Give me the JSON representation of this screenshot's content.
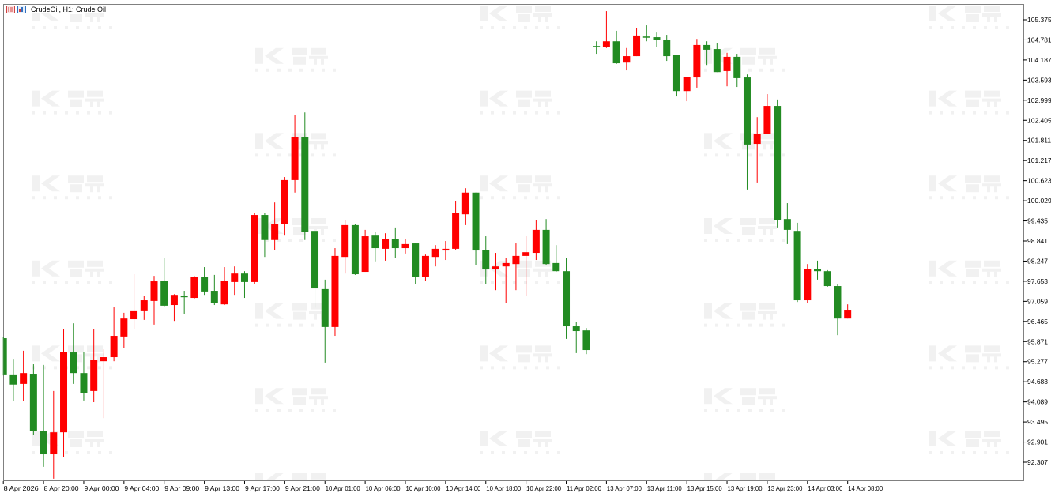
{
  "header": {
    "title": "CrudeOil, H1:  Crude Oil",
    "icons": [
      "chart-window-icon",
      "symbol-properties-icon"
    ]
  },
  "watermark": {
    "text": "智昇",
    "sub": "ZHISHENG"
  },
  "colors": {
    "bullish": "#ff0000",
    "bearish": "#228b22",
    "background": "#ffffff",
    "frame": "#808080",
    "watermark": "#e6e6e6"
  },
  "chart_data": {
    "type": "candlestick",
    "symbol": "CrudeOil",
    "timeframe": "H1",
    "ylim": [
      91.7,
      105.9
    ],
    "grid": false,
    "y_ticks": [
      "105.375",
      "104.781",
      "104.187",
      "103.593",
      "102.999",
      "102.405",
      "101.811",
      "101.217",
      "100.623",
      "100.029",
      "99.435",
      "98.841",
      "98.247",
      "97.653",
      "97.059",
      "96.465",
      "95.871",
      "95.277",
      "94.683",
      "94.089",
      "93.495",
      "92.901",
      "92.307"
    ],
    "x_ticks": [
      "8 Apr 2026",
      "8 Apr 20:00",
      "9 Apr 00:00",
      "9 Apr 04:00",
      "9 Apr 09:00",
      "9 Apr 13:00",
      "9 Apr 17:00",
      "9 Apr 21:00",
      "10 Apr 01:00",
      "10 Apr 06:00",
      "10 Apr 10:00",
      "10 Apr 14:00",
      "10 Apr 18:00",
      "10 Apr 22:00",
      "11 Apr 02:00",
      "13 Apr 07:00",
      "13 Apr 11:00",
      "13 Apr 15:00",
      "13 Apr 19:00",
      "13 Apr 23:00",
      "14 Apr 03:00",
      "14 Apr 08:00"
    ],
    "x_tick_every_bars": 4,
    "ohlc_columns": [
      "open",
      "high",
      "low",
      "close"
    ],
    "ohlc": [
      [
        95.97,
        96.0,
        94.87,
        94.9
      ],
      [
        94.9,
        95.36,
        94.11,
        94.6
      ],
      [
        94.62,
        95.6,
        94.11,
        94.94
      ],
      [
        94.92,
        95.2,
        93.12,
        93.24
      ],
      [
        93.22,
        95.18,
        92.17,
        92.54
      ],
      [
        92.54,
        94.41,
        91.82,
        93.19
      ],
      [
        93.19,
        96.25,
        92.45,
        95.57
      ],
      [
        95.55,
        96.41,
        94.62,
        94.94
      ],
      [
        94.94,
        95.55,
        94.13,
        94.36
      ],
      [
        94.41,
        96.25,
        94.08,
        95.32
      ],
      [
        95.29,
        95.64,
        93.61,
        95.41
      ],
      [
        95.41,
        96.88,
        95.29,
        96.04
      ],
      [
        96.02,
        96.72,
        95.69,
        96.55
      ],
      [
        96.53,
        97.86,
        96.25,
        96.79
      ],
      [
        96.79,
        97.23,
        96.51,
        97.09
      ],
      [
        97.07,
        97.81,
        96.37,
        97.65
      ],
      [
        97.67,
        98.35,
        96.88,
        96.93
      ],
      [
        96.95,
        97.27,
        96.48,
        97.25
      ],
      [
        97.23,
        97.37,
        96.69,
        97.18
      ],
      [
        97.16,
        97.81,
        97.12,
        97.79
      ],
      [
        97.77,
        98.07,
        97.25,
        97.35
      ],
      [
        97.37,
        97.84,
        96.95,
        97.02
      ],
      [
        96.97,
        98.07,
        96.95,
        97.67
      ],
      [
        97.63,
        98.09,
        97.25,
        97.88
      ],
      [
        97.88,
        97.95,
        97.16,
        97.63
      ],
      [
        97.63,
        99.68,
        97.56,
        99.61
      ],
      [
        99.61,
        99.66,
        98.37,
        98.87
      ],
      [
        98.87,
        99.98,
        98.58,
        99.35
      ],
      [
        99.35,
        100.73,
        99.0,
        100.64
      ],
      [
        100.64,
        102.57,
        100.27,
        101.92
      ],
      [
        101.9,
        102.64,
        98.87,
        99.12
      ],
      [
        99.14,
        99.14,
        96.86,
        97.44
      ],
      [
        97.42,
        97.7,
        95.25,
        96.3
      ],
      [
        96.3,
        98.63,
        96.04,
        98.4
      ],
      [
        98.37,
        99.47,
        97.88,
        99.31
      ],
      [
        99.31,
        99.35,
        97.84,
        97.86
      ],
      [
        97.93,
        99.17,
        97.93,
        98.98
      ],
      [
        99.0,
        99.1,
        98.24,
        98.63
      ],
      [
        98.61,
        99.07,
        98.26,
        98.91
      ],
      [
        98.91,
        99.24,
        98.33,
        98.63
      ],
      [
        98.63,
        98.89,
        98.47,
        98.75
      ],
      [
        98.77,
        98.79,
        97.58,
        97.77
      ],
      [
        97.79,
        98.44,
        97.67,
        98.4
      ],
      [
        98.37,
        98.72,
        98.09,
        98.61
      ],
      [
        98.56,
        98.84,
        98.28,
        98.61
      ],
      [
        98.61,
        100.01,
        98.58,
        99.68
      ],
      [
        99.63,
        100.4,
        99.31,
        100.27
      ],
      [
        100.27,
        100.27,
        98.14,
        98.56
      ],
      [
        98.58,
        98.98,
        97.56,
        98.0
      ],
      [
        98.0,
        98.49,
        97.39,
        98.09
      ],
      [
        98.09,
        98.35,
        97.02,
        98.19
      ],
      [
        98.16,
        98.77,
        97.39,
        98.4
      ],
      [
        98.4,
        98.98,
        97.21,
        98.51
      ],
      [
        98.49,
        99.45,
        98.28,
        99.17
      ],
      [
        99.17,
        99.49,
        98.14,
        98.16
      ],
      [
        98.19,
        98.72,
        97.93,
        97.95
      ],
      [
        97.95,
        98.33,
        95.95,
        96.32
      ],
      [
        96.32,
        96.44,
        95.53,
        96.18
      ],
      [
        96.2,
        96.27,
        95.5,
        95.62
      ],
      [
        104.6,
        104.74,
        104.37,
        104.56
      ],
      [
        104.56,
        105.63,
        104.54,
        104.74
      ],
      [
        104.74,
        105.05,
        104.07,
        104.09
      ],
      [
        104.11,
        104.54,
        103.88,
        104.3
      ],
      [
        104.3,
        105.12,
        104.3,
        104.91
      ],
      [
        104.88,
        105.21,
        104.74,
        104.86
      ],
      [
        104.86,
        105.0,
        104.56,
        104.79
      ],
      [
        104.79,
        104.93,
        104.16,
        104.3
      ],
      [
        104.33,
        104.33,
        103.11,
        103.27
      ],
      [
        103.27,
        103.69,
        102.97,
        103.69
      ],
      [
        103.67,
        104.81,
        103.37,
        104.63
      ],
      [
        104.63,
        104.74,
        104.04,
        104.49
      ],
      [
        104.51,
        104.68,
        103.83,
        103.83
      ],
      [
        103.86,
        104.4,
        103.41,
        104.28
      ],
      [
        104.28,
        104.37,
        103.39,
        103.65
      ],
      [
        103.67,
        103.76,
        100.36,
        101.69
      ],
      [
        101.71,
        102.5,
        100.57,
        102.01
      ],
      [
        102.01,
        103.18,
        102.01,
        102.83
      ],
      [
        102.83,
        103.02,
        99.24,
        99.47
      ],
      [
        99.49,
        99.96,
        98.75,
        99.17
      ],
      [
        99.14,
        99.38,
        97.04,
        97.09
      ],
      [
        97.09,
        98.16,
        97.02,
        98.02
      ],
      [
        98.02,
        98.26,
        97.7,
        97.95
      ],
      [
        97.95,
        97.98,
        97.49,
        97.51
      ],
      [
        97.51,
        97.58,
        96.06,
        96.55
      ],
      [
        96.55,
        96.97,
        96.55,
        96.81
      ]
    ]
  }
}
